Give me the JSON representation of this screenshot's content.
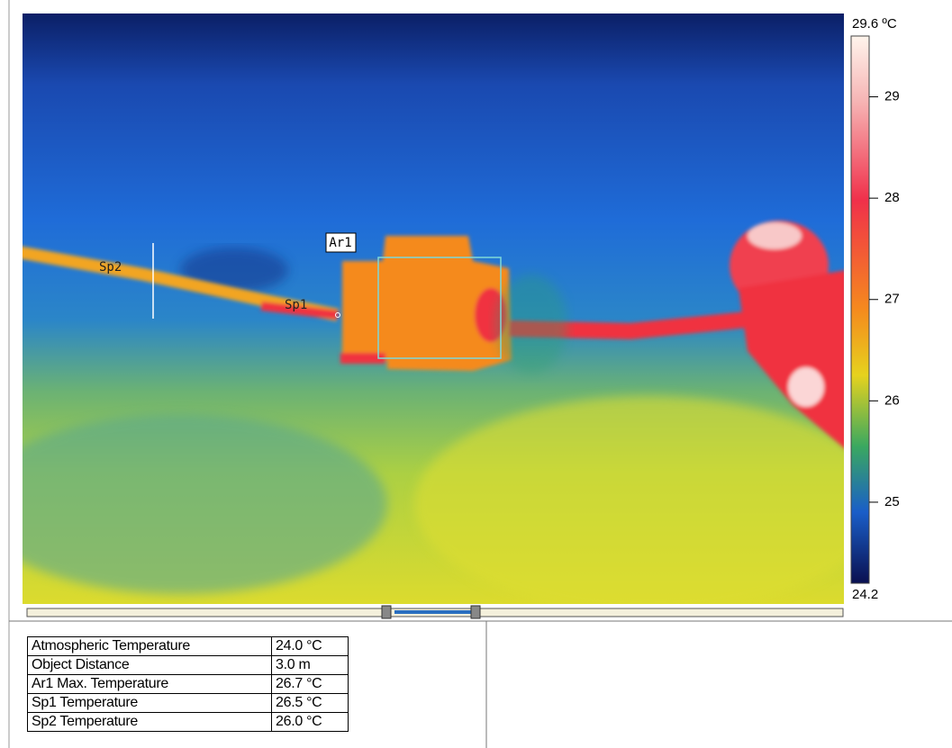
{
  "colorbar": {
    "max": {
      "value": 29.6,
      "label": "29.6 ºC"
    },
    "min": {
      "value": 24.2,
      "label": "24.2"
    },
    "ticks": [
      29,
      28,
      27,
      26,
      25
    ]
  },
  "markers": {
    "area": "Ar1",
    "spot1": "Sp1",
    "spot2": "Sp2"
  },
  "table": {
    "rows": [
      [
        "Atmospheric Temperature",
        "24.0 °C"
      ],
      [
        "Object Distance",
        "3.0 m"
      ],
      [
        "Ar1 Max. Temperature",
        "26.7 °C"
      ],
      [
        "Sp1 Temperature",
        "26.5 °C"
      ],
      [
        "Sp2 Temperature",
        "26.0 °C"
      ]
    ]
  }
}
